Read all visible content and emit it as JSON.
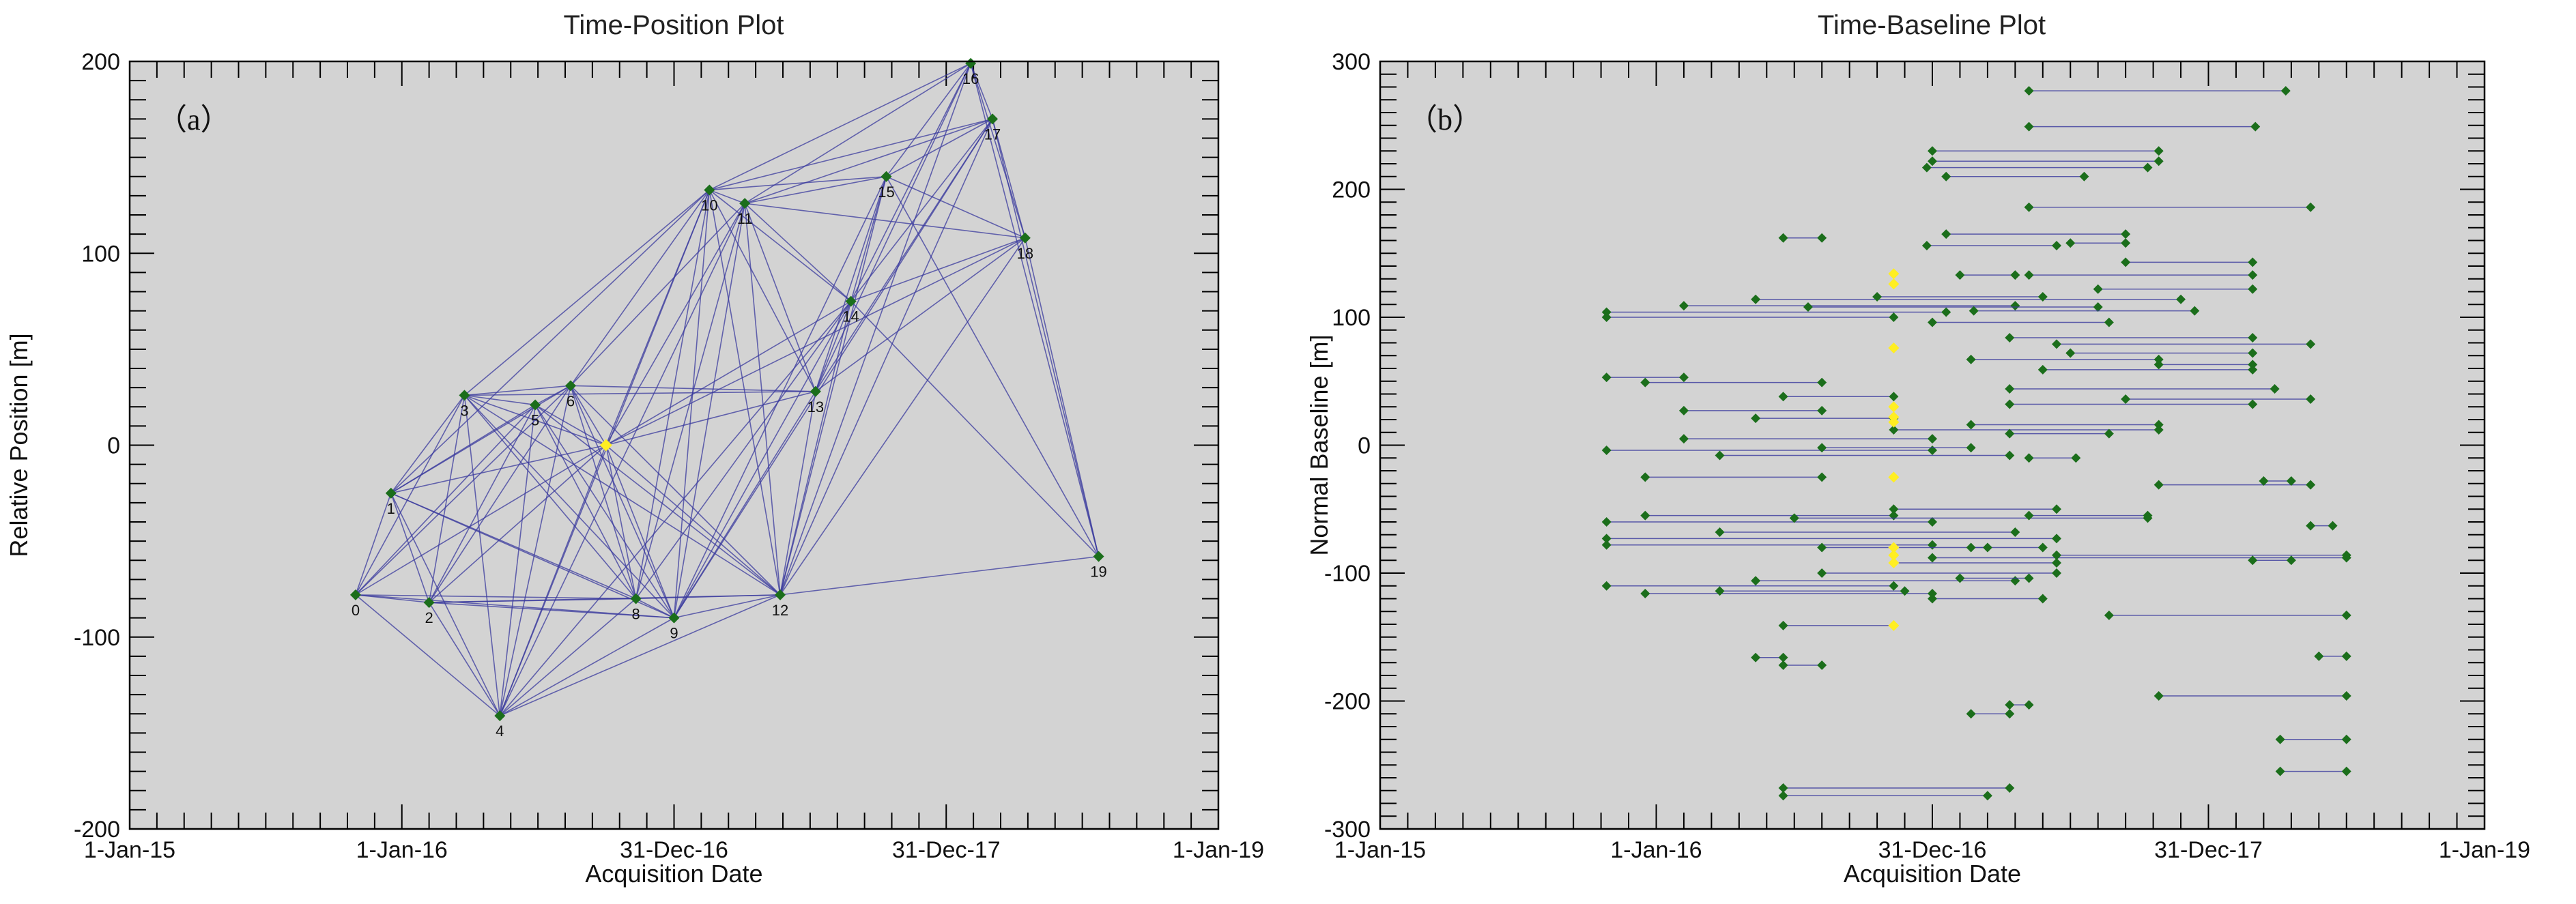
{
  "chart_data": [
    {
      "type": "scatter",
      "title": "Time-Position Plot",
      "panel_label": "（a）",
      "xlabel": "Acquisition Date",
      "ylabel": "Relative Position [m]",
      "xlim": [
        0,
        4
      ],
      "ylim": [
        -200,
        200
      ],
      "x_ticks": [
        {
          "v": 0,
          "label": "1-Jan-15"
        },
        {
          "v": 1,
          "label": "1-Jan-16"
        },
        {
          "v": 2,
          "label": "31-Dec-16"
        },
        {
          "v": 3,
          "label": "31-Dec-17"
        },
        {
          "v": 4,
          "label": "1-Jan-19"
        }
      ],
      "y_ticks": [
        -200,
        -100,
        0,
        100,
        200
      ],
      "nodes": [
        {
          "id": "0",
          "x": 0.83,
          "y": -78
        },
        {
          "id": "1",
          "x": 0.96,
          "y": -25
        },
        {
          "id": "2",
          "x": 1.1,
          "y": -82
        },
        {
          "id": "3",
          "x": 1.23,
          "y": 26
        },
        {
          "id": "4",
          "x": 1.36,
          "y": -141
        },
        {
          "id": "5",
          "x": 1.49,
          "y": 21
        },
        {
          "id": "6",
          "x": 1.62,
          "y": 31
        },
        {
          "id": "8",
          "x": 1.86,
          "y": -80
        },
        {
          "id": "9",
          "x": 2.0,
          "y": -90
        },
        {
          "id": "10",
          "x": 2.13,
          "y": 133
        },
        {
          "id": "11",
          "x": 2.26,
          "y": 126
        },
        {
          "id": "12",
          "x": 2.39,
          "y": -78
        },
        {
          "id": "13",
          "x": 2.52,
          "y": 28
        },
        {
          "id": "14",
          "x": 2.65,
          "y": 75
        },
        {
          "id": "15",
          "x": 2.78,
          "y": 140
        },
        {
          "id": "16",
          "x": 3.09,
          "y": 199
        },
        {
          "id": "17",
          "x": 3.17,
          "y": 170
        },
        {
          "id": "18",
          "x": 3.29,
          "y": 108
        },
        {
          "id": "19",
          "x": 3.56,
          "y": -58
        }
      ],
      "reference": {
        "x": 1.75,
        "y": 0
      },
      "edges": [
        [
          0,
          1
        ],
        [
          0,
          2
        ],
        [
          0,
          3
        ],
        [
          0,
          4
        ],
        [
          0,
          5
        ],
        [
          0,
          6
        ],
        [
          0,
          "8"
        ],
        [
          0,
          "9"
        ],
        [
          0,
          "R"
        ],
        [
          1,
          2
        ],
        [
          1,
          3
        ],
        [
          1,
          4
        ],
        [
          1,
          5
        ],
        [
          1,
          6
        ],
        [
          1,
          "8"
        ],
        [
          1,
          "9"
        ],
        [
          1,
          "R"
        ],
        [
          1,
          "10"
        ],
        [
          2,
          3
        ],
        [
          2,
          4
        ],
        [
          2,
          5
        ],
        [
          2,
          6
        ],
        [
          2,
          "8"
        ],
        [
          2,
          "9"
        ],
        [
          2,
          "12"
        ],
        [
          2,
          "R"
        ],
        [
          3,
          4
        ],
        [
          3,
          5
        ],
        [
          3,
          6
        ],
        [
          3,
          "8"
        ],
        [
          3,
          "9"
        ],
        [
          3,
          "10"
        ],
        [
          3,
          "R"
        ],
        [
          3,
          "13"
        ],
        [
          4,
          5
        ],
        [
          4,
          6
        ],
        [
          4,
          "8"
        ],
        [
          4,
          "9"
        ],
        [
          4,
          "11"
        ],
        [
          4,
          "12"
        ],
        [
          4,
          "R"
        ],
        [
          4,
          "14"
        ],
        [
          4,
          "10"
        ],
        [
          5,
          6
        ],
        [
          5,
          "8"
        ],
        [
          5,
          "9"
        ],
        [
          5,
          "R"
        ],
        [
          5,
          "12"
        ],
        [
          6,
          "8"
        ],
        [
          6,
          "9"
        ],
        [
          6,
          "12"
        ],
        [
          6,
          "R"
        ],
        [
          6,
          "13"
        ],
        [
          6,
          "11"
        ],
        [
          "8",
          "9"
        ],
        [
          "8",
          "R"
        ],
        [
          "8",
          "10"
        ],
        [
          "8",
          "11"
        ],
        [
          "8",
          "12"
        ],
        [
          "8",
          "14"
        ],
        [
          "9",
          "R"
        ],
        [
          "9",
          "10"
        ],
        [
          "9",
          "11"
        ],
        [
          "9",
          "12"
        ],
        [
          "9",
          "13"
        ],
        [
          "9",
          "14"
        ],
        [
          "9",
          "15"
        ],
        [
          "R",
          "10"
        ],
        [
          "R",
          "11"
        ],
        [
          "R",
          "12"
        ],
        [
          "R",
          "13"
        ],
        [
          "R",
          "14"
        ],
        [
          "R",
          "18"
        ],
        [
          "10",
          "11"
        ],
        [
          "10",
          "12"
        ],
        [
          "10",
          "13"
        ],
        [
          "10",
          "14"
        ],
        [
          "10",
          "15"
        ],
        [
          "10",
          "16"
        ],
        [
          "10",
          "17"
        ],
        [
          "11",
          "12"
        ],
        [
          "11",
          "13"
        ],
        [
          "11",
          "14"
        ],
        [
          "11",
          "15"
        ],
        [
          "11",
          "16"
        ],
        [
          "11",
          "17"
        ],
        [
          "11",
          "18"
        ],
        [
          "12",
          "13"
        ],
        [
          "12",
          "14"
        ],
        [
          "12",
          "15"
        ],
        [
          "12",
          "16"
        ],
        [
          "12",
          "17"
        ],
        [
          "12",
          "18"
        ],
        [
          "13",
          "14"
        ],
        [
          "13",
          "15"
        ],
        [
          "13",
          "16"
        ],
        [
          "13",
          "17"
        ],
        [
          "13",
          "18"
        ],
        [
          "14",
          "15"
        ],
        [
          "14",
          "16"
        ],
        [
          "14",
          "17"
        ],
        [
          "14",
          "18"
        ],
        [
          "14",
          "19"
        ],
        [
          "15",
          "16"
        ],
        [
          "15",
          "17"
        ],
        [
          "15",
          "18"
        ],
        [
          "15",
          "19"
        ],
        [
          "16",
          "17"
        ],
        [
          "16",
          "18"
        ],
        [
          "16",
          "19"
        ],
        [
          "17",
          "18"
        ],
        [
          "17",
          "19"
        ],
        [
          "18",
          "19"
        ],
        [
          "3",
          "12"
        ],
        [
          "6",
          "10"
        ],
        [
          "12",
          "19"
        ],
        [
          "9",
          "17"
        ]
      ]
    },
    {
      "type": "scatter",
      "title": "Time-Baseline Plot",
      "panel_label": "（b）",
      "xlabel": "Acquisition Date",
      "ylabel": "Normal Baseline [m]",
      "xlim": [
        0,
        4
      ],
      "ylim": [
        -300,
        300
      ],
      "x_ticks": [
        {
          "v": 0,
          "label": "1-Jan-15"
        },
        {
          "v": 1,
          "label": "1-Jan-16"
        },
        {
          "v": 2,
          "label": "31-Dec-16"
        },
        {
          "v": 3,
          "label": "31-Dec-17"
        },
        {
          "v": 4,
          "label": "1-Jan-19"
        }
      ],
      "y_ticks": [
        -300,
        -200,
        -100,
        0,
        100,
        200,
        300
      ],
      "pairs": [
        [
          2.35,
          277,
          3.28,
          277
        ],
        [
          2.35,
          249,
          3.17,
          249
        ],
        [
          2.0,
          230,
          2.82,
          230
        ],
        [
          2.0,
          222,
          2.82,
          222
        ],
        [
          1.98,
          217,
          2.78,
          217
        ],
        [
          2.05,
          210,
          2.55,
          210
        ],
        [
          2.35,
          186,
          3.37,
          186
        ],
        [
          1.98,
          156,
          2.45,
          156
        ],
        [
          2.05,
          165,
          2.7,
          165
        ],
        [
          2.5,
          158,
          2.7,
          158
        ],
        [
          1.46,
          162,
          1.6,
          162
        ],
        [
          2.7,
          143,
          3.16,
          143
        ],
        [
          2.35,
          133,
          3.16,
          133
        ],
        [
          2.1,
          133,
          2.3,
          133
        ],
        [
          2.6,
          122,
          3.16,
          122
        ],
        [
          0.82,
          104,
          2.05,
          104
        ],
        [
          0.82,
          100,
          1.86,
          100
        ],
        [
          1.1,
          109,
          2.3,
          109
        ],
        [
          1.36,
          114,
          2.9,
          114
        ],
        [
          1.55,
          108,
          2.6,
          108
        ],
        [
          1.8,
          116,
          2.4,
          116
        ],
        [
          2.15,
          105,
          2.95,
          105
        ],
        [
          2.0,
          96,
          2.64,
          96
        ],
        [
          2.28,
          84,
          3.16,
          84
        ],
        [
          2.45,
          79,
          3.37,
          79
        ],
        [
          2.14,
          67,
          2.82,
          67
        ],
        [
          2.5,
          72,
          3.16,
          72
        ],
        [
          2.4,
          59,
          3.16,
          59
        ],
        [
          2.82,
          63,
          3.16,
          63
        ],
        [
          0.82,
          53,
          1.1,
          53
        ],
        [
          0.96,
          49,
          1.6,
          49
        ],
        [
          1.46,
          38,
          1.86,
          38
        ],
        [
          2.28,
          44,
          3.24,
          44
        ],
        [
          2.7,
          36,
          3.37,
          36
        ],
        [
          2.28,
          32,
          3.16,
          32
        ],
        [
          1.1,
          27,
          1.6,
          27
        ],
        [
          1.36,
          21,
          1.86,
          21
        ],
        [
          2.14,
          16,
          2.82,
          16
        ],
        [
          1.86,
          12,
          2.82,
          12
        ],
        [
          2.28,
          9,
          2.64,
          9
        ],
        [
          1.1,
          5,
          2.0,
          5
        ],
        [
          0.82,
          -4,
          2.0,
          -4
        ],
        [
          1.23,
          -8,
          2.28,
          -8
        ],
        [
          1.6,
          -2,
          2.14,
          -2
        ],
        [
          2.35,
          -10,
          2.52,
          -10
        ],
        [
          0.96,
          -25,
          1.6,
          -25
        ],
        [
          2.82,
          -31,
          3.37,
          -31
        ],
        [
          3.2,
          -28,
          3.3,
          -28
        ],
        [
          0.82,
          -60,
          2.0,
          -60
        ],
        [
          0.96,
          -55,
          1.86,
          -55
        ],
        [
          1.23,
          -68,
          2.3,
          -68
        ],
        [
          1.5,
          -57,
          2.78,
          -57
        ],
        [
          1.86,
          -50,
          2.45,
          -50
        ],
        [
          2.35,
          -55,
          2.78,
          -55
        ],
        [
          0.82,
          -78,
          2.0,
          -78
        ],
        [
          0.82,
          -73,
          2.45,
          -73
        ],
        [
          1.6,
          -80,
          2.4,
          -80
        ],
        [
          2.14,
          -80,
          2.2,
          -80
        ],
        [
          3.37,
          -63,
          3.45,
          -63
        ],
        [
          2.0,
          -88,
          3.5,
          -88
        ],
        [
          2.45,
          -86,
          3.5,
          -86
        ],
        [
          1.86,
          -92,
          2.45,
          -92
        ],
        [
          0.82,
          -110,
          1.86,
          -110
        ],
        [
          0.96,
          -116,
          2.0,
          -116
        ],
        [
          1.23,
          -114,
          1.9,
          -114
        ],
        [
          1.36,
          -106,
          2.3,
          -106
        ],
        [
          1.6,
          -100,
          2.45,
          -100
        ],
        [
          2.1,
          -104,
          2.35,
          -104
        ],
        [
          2.0,
          -120,
          2.4,
          -120
        ],
        [
          3.16,
          -90,
          3.3,
          -90
        ],
        [
          2.64,
          -133,
          3.5,
          -133
        ],
        [
          1.46,
          -141,
          1.86,
          -141
        ],
        [
          1.36,
          -166,
          1.46,
          -166
        ],
        [
          1.46,
          -172,
          1.6,
          -172
        ],
        [
          3.4,
          -165,
          3.5,
          -165
        ],
        [
          2.82,
          -196,
          3.5,
          -196
        ],
        [
          2.14,
          -210,
          2.28,
          -210
        ],
        [
          2.28,
          -203,
          2.35,
          -203
        ],
        [
          3.26,
          -230,
          3.5,
          -230
        ],
        [
          3.26,
          -255,
          3.5,
          -255
        ],
        [
          1.46,
          -268,
          2.28,
          -268
        ],
        [
          1.46,
          -274,
          2.2,
          -274
        ]
      ],
      "reference": [
        {
          "x": 1.86,
          "y": 134
        },
        {
          "x": 1.86,
          "y": 126
        },
        {
          "x": 1.86,
          "y": 76
        },
        {
          "x": 1.86,
          "y": 30
        },
        {
          "x": 1.86,
          "y": 22
        },
        {
          "x": 1.86,
          "y": 18
        },
        {
          "x": 1.86,
          "y": -25
        },
        {
          "x": 1.86,
          "y": -80
        },
        {
          "x": 1.86,
          "y": -86
        },
        {
          "x": 1.86,
          "y": -92
        },
        {
          "x": 1.86,
          "y": -141
        }
      ]
    }
  ],
  "colors": {
    "background": "#d3d3d3",
    "edge": "#3a3a9e",
    "node": "#1b6e1b",
    "reference": "#ffee22",
    "axis": "#000000"
  }
}
